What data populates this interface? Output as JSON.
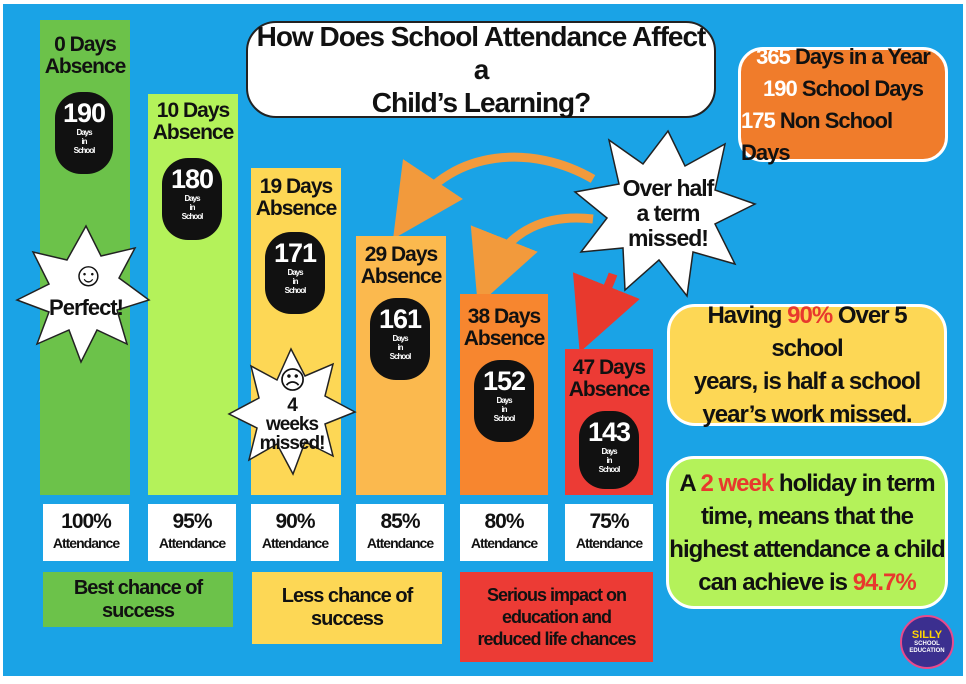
{
  "title": {
    "line1": "How Does School Attendance Affect a",
    "line2": "Child’s Learning?"
  },
  "year_info": {
    "year_days": "365",
    "year_label": "Days in a Year",
    "school_days": "190",
    "school_label": "School Days",
    "non_school_days": "175",
    "non_school_label": "Non School Days"
  },
  "bars": [
    {
      "absence_days": "0 Days",
      "absence_label": "Absence",
      "days_in_school": "190",
      "days_label_1": "Days",
      "days_label_2": "in",
      "days_label_3": "School",
      "attendance_percent": "100%",
      "attendance_label": "Attendance",
      "color": "#6cc24a"
    },
    {
      "absence_days": "10 Days",
      "absence_label": "Absence",
      "days_in_school": "180",
      "days_label_1": "Days",
      "days_label_2": "in",
      "days_label_3": "School",
      "attendance_percent": "95%",
      "attendance_label": "Attendance",
      "color": "#b4f25a"
    },
    {
      "absence_days": "19 Days",
      "absence_label": "Absence",
      "days_in_school": "171",
      "days_label_1": "Days",
      "days_label_2": "in",
      "days_label_3": "School",
      "attendance_percent": "90%",
      "attendance_label": "Attendance",
      "color": "#fdd755"
    },
    {
      "absence_days": "29 Days",
      "absence_label": "Absence",
      "days_in_school": "161",
      "days_label_1": "Days",
      "days_label_2": "in",
      "days_label_3": "School",
      "attendance_percent": "85%",
      "attendance_label": "Attendance",
      "color": "#fbb94e"
    },
    {
      "absence_days": "38 Days",
      "absence_label": "Absence",
      "days_in_school": "152",
      "days_label_1": "Days",
      "days_label_2": "in",
      "days_label_3": "School",
      "attendance_percent": "80%",
      "attendance_label": "Attendance",
      "color": "#f7862f"
    },
    {
      "absence_days": "47 Days",
      "absence_label": "Absence",
      "days_in_school": "143",
      "days_label_1": "Days",
      "days_label_2": "in",
      "days_label_3": "School",
      "attendance_percent": "75%",
      "attendance_label": "Attendance",
      "color": "#ec3b35"
    }
  ],
  "categories": {
    "best": "Best chance of success",
    "less": "Less chance of success",
    "serious_1": "Serious impact on",
    "serious_2": "education and",
    "serious_3": "reduced life chances"
  },
  "stars": {
    "perfect_face": "☺",
    "perfect_text": "Perfect!",
    "weeks_face": "☹",
    "weeks_line1": "4",
    "weeks_line2": "weeks",
    "weeks_line3": "missed!",
    "half_line1": "Over half",
    "half_line2": "a term",
    "half_line3": "missed!"
  },
  "info_90": {
    "pre": "Having ",
    "highlight": "90%",
    "post": " Over 5 school",
    "line2": "years, is half a school",
    "line3": "year’s work missed."
  },
  "info_holiday": {
    "pre": "A ",
    "highlight": "2 week",
    "post": " holiday in term",
    "line2": "time, means that the",
    "line3": "highest attendance a child",
    "line4_pre": "can achieve is ",
    "line4_highlight": "94.7%"
  },
  "logo": {
    "line1": "SILLY",
    "line2": "SCHOOL",
    "line3": "EDUCATION"
  },
  "colors": {
    "background": "#1aa3e6",
    "highlight": "#e8392d",
    "info_90_bg": "#fdd755",
    "info_holiday_bg": "#b4f25a",
    "days_box_bg": "#f07c2b"
  }
}
